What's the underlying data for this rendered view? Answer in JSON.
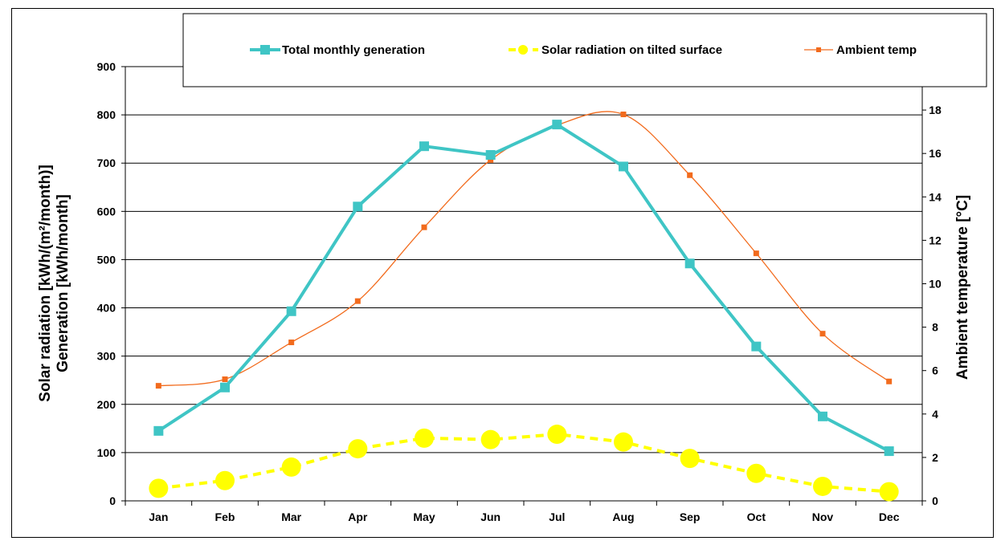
{
  "chart_data": {
    "type": "line",
    "categories": [
      "Jan",
      "Feb",
      "Mar",
      "Apr",
      "May",
      "Jun",
      "Jul",
      "Aug",
      "Sep",
      "Oct",
      "Nov",
      "Dec"
    ],
    "series": [
      {
        "name": "Total monthly generation",
        "axis": "left",
        "color": "#3fc5c5",
        "marker": "square",
        "values": [
          145,
          235,
          393,
          610,
          735,
          717,
          780,
          693,
          492,
          320,
          175,
          103
        ]
      },
      {
        "name": "Solar radiation on tilted surface",
        "axis": "left",
        "color": "#ffff00",
        "marker": "circle",
        "line_style": "dashed",
        "values": [
          26,
          42,
          70,
          108,
          130,
          127,
          138,
          122,
          88,
          57,
          30,
          19
        ]
      },
      {
        "name": "Ambient temp",
        "axis": "right",
        "color": "#f26b1d",
        "marker": "small-square",
        "line_style": "smooth",
        "values": [
          5.3,
          5.6,
          7.3,
          9.2,
          12.6,
          15.7,
          17.3,
          17.8,
          15.0,
          11.4,
          7.7,
          5.5
        ]
      }
    ],
    "y_left": {
      "label_line1": "Solar radiation [kWh/(m²/month)]",
      "label_line2": "Generation [kWh/month]",
      "ylim": [
        0,
        900
      ],
      "ticks": [
        "0",
        "100",
        "200",
        "300",
        "400",
        "500",
        "600",
        "700",
        "800",
        "900"
      ]
    },
    "y_right": {
      "label": "Ambient temperature [°C]",
      "ylim": [
        0,
        20
      ],
      "ticks": [
        "0",
        "2",
        "4",
        "6",
        "8",
        "10",
        "12",
        "14",
        "16",
        "18"
      ]
    },
    "grid": true,
    "legend_position": "top"
  }
}
